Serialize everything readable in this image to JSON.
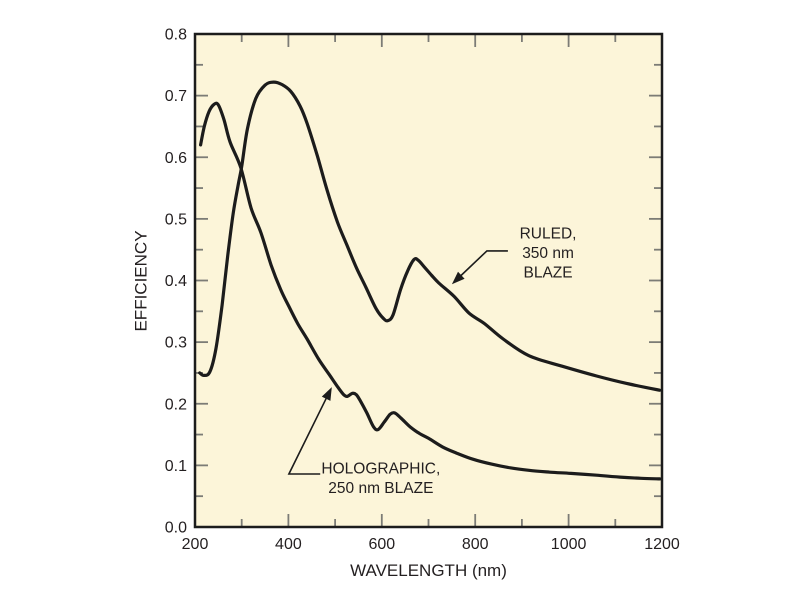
{
  "figure": {
    "page_bg": "#ffffff"
  },
  "chart_data": {
    "type": "line",
    "title": "",
    "xlabel": "WAVELENGTH (nm)",
    "ylabel": "EFFICIENCY",
    "xlim": [
      200,
      1200
    ],
    "ylim": [
      0,
      0.8
    ],
    "grid": false,
    "legend_position": "inline-annotations",
    "colors": {
      "plot_bg": "#fcf5d9",
      "frame": "#1c1c1c",
      "curve": "#1c1c1c",
      "tick": "#7c7c76",
      "text": "#231f20"
    },
    "x_axis_labels": [
      [
        200,
        "200"
      ],
      [
        400,
        "400"
      ],
      [
        600,
        "600"
      ],
      [
        800,
        "800"
      ],
      [
        1000,
        "1000"
      ],
      [
        1200,
        "1200"
      ]
    ],
    "x_major_ticks": [
      400,
      600,
      800,
      1000
    ],
    "x_minor_ticks": [
      300,
      500,
      700,
      900,
      1100
    ],
    "y_axis_labels": [
      [
        0,
        "0.0"
      ],
      [
        0.1,
        "0.1"
      ],
      [
        0.2,
        "0.2"
      ],
      [
        0.3,
        "0.3"
      ],
      [
        0.4,
        "0.4"
      ],
      [
        0.5,
        "0.5"
      ],
      [
        0.6,
        "0.6"
      ],
      [
        0.7,
        "0.7"
      ],
      [
        0.8,
        "0.8"
      ]
    ],
    "y_major_ticks": [
      0.1,
      0.2,
      0.3,
      0.4,
      0.5,
      0.6,
      0.7
    ],
    "y_minor_ticks": [
      0.05,
      0.15,
      0.25,
      0.35,
      0.45,
      0.55,
      0.65,
      0.75
    ],
    "series": [
      {
        "name": "RULED, 350 nm BLAZE",
        "points": [
          [
            210,
            0.25
          ],
          [
            219,
            0.246
          ],
          [
            232,
            0.252
          ],
          [
            245,
            0.29
          ],
          [
            258,
            0.36
          ],
          [
            270,
            0.44
          ],
          [
            282,
            0.51
          ],
          [
            293,
            0.557
          ],
          [
            300,
            0.585
          ],
          [
            312,
            0.645
          ],
          [
            330,
            0.695
          ],
          [
            350,
            0.717
          ],
          [
            368,
            0.722
          ],
          [
            386,
            0.718
          ],
          [
            405,
            0.707
          ],
          [
            425,
            0.683
          ],
          [
            440,
            0.655
          ],
          [
            462,
            0.602
          ],
          [
            483,
            0.546
          ],
          [
            505,
            0.495
          ],
          [
            525,
            0.458
          ],
          [
            546,
            0.42
          ],
          [
            566,
            0.389
          ],
          [
            588,
            0.354
          ],
          [
            604,
            0.338
          ],
          [
            613,
            0.335
          ],
          [
            624,
            0.344
          ],
          [
            640,
            0.385
          ],
          [
            655,
            0.415
          ],
          [
            669,
            0.434
          ],
          [
            678,
            0.433
          ],
          [
            692,
            0.421
          ],
          [
            706,
            0.409
          ],
          [
            722,
            0.396
          ],
          [
            755,
            0.374
          ],
          [
            787,
            0.347
          ],
          [
            820,
            0.33
          ],
          [
            860,
            0.305
          ],
          [
            915,
            0.278
          ],
          [
            986,
            0.261
          ],
          [
            1060,
            0.245
          ],
          [
            1130,
            0.232
          ],
          [
            1195,
            0.222
          ]
        ]
      },
      {
        "name": "HOLOGRAPHIC, 250 nm BLAZE",
        "points": [
          [
            212,
            0.62
          ],
          [
            220,
            0.65
          ],
          [
            230,
            0.674
          ],
          [
            241,
            0.686
          ],
          [
            250,
            0.685
          ],
          [
            262,
            0.661
          ],
          [
            275,
            0.625
          ],
          [
            298,
            0.583
          ],
          [
            320,
            0.518
          ],
          [
            341,
            0.478
          ],
          [
            363,
            0.425
          ],
          [
            383,
            0.386
          ],
          [
            401,
            0.358
          ],
          [
            420,
            0.33
          ],
          [
            440,
            0.305
          ],
          [
            465,
            0.272
          ],
          [
            487,
            0.248
          ],
          [
            505,
            0.228
          ],
          [
            518,
            0.215
          ],
          [
            526,
            0.212
          ],
          [
            537,
            0.217
          ],
          [
            545,
            0.215
          ],
          [
            553,
            0.206
          ],
          [
            568,
            0.185
          ],
          [
            582,
            0.163
          ],
          [
            592,
            0.158
          ],
          [
            605,
            0.17
          ],
          [
            618,
            0.183
          ],
          [
            628,
            0.185
          ],
          [
            642,
            0.176
          ],
          [
            660,
            0.163
          ],
          [
            680,
            0.152
          ],
          [
            700,
            0.144
          ],
          [
            730,
            0.13
          ],
          [
            760,
            0.12
          ],
          [
            795,
            0.11
          ],
          [
            835,
            0.102
          ],
          [
            875,
            0.096
          ],
          [
            915,
            0.092
          ],
          [
            960,
            0.089
          ],
          [
            1005,
            0.087
          ],
          [
            1060,
            0.084
          ],
          [
            1110,
            0.081
          ],
          [
            1155,
            0.079
          ],
          [
            1195,
            0.078
          ]
        ]
      }
    ],
    "annotations": [
      {
        "id": "ruled",
        "lines": [
          "RULED,",
          "350 nm",
          "BLAZE"
        ],
        "label_anchor": [
          956,
          0.477
        ],
        "leader": [
          [
            870,
            0.448
          ],
          [
            825,
            0.448
          ],
          [
            750,
            0.394
          ]
        ]
      },
      {
        "id": "holographic",
        "lines": [
          "HOLOGRAPHIC,",
          "250 nm BLAZE"
        ],
        "label_anchor": [
          598,
          0.096
        ],
        "leader": [
          [
            468,
            0.086
          ],
          [
            401,
            0.086
          ],
          [
            493,
            0.227
          ]
        ]
      }
    ]
  }
}
